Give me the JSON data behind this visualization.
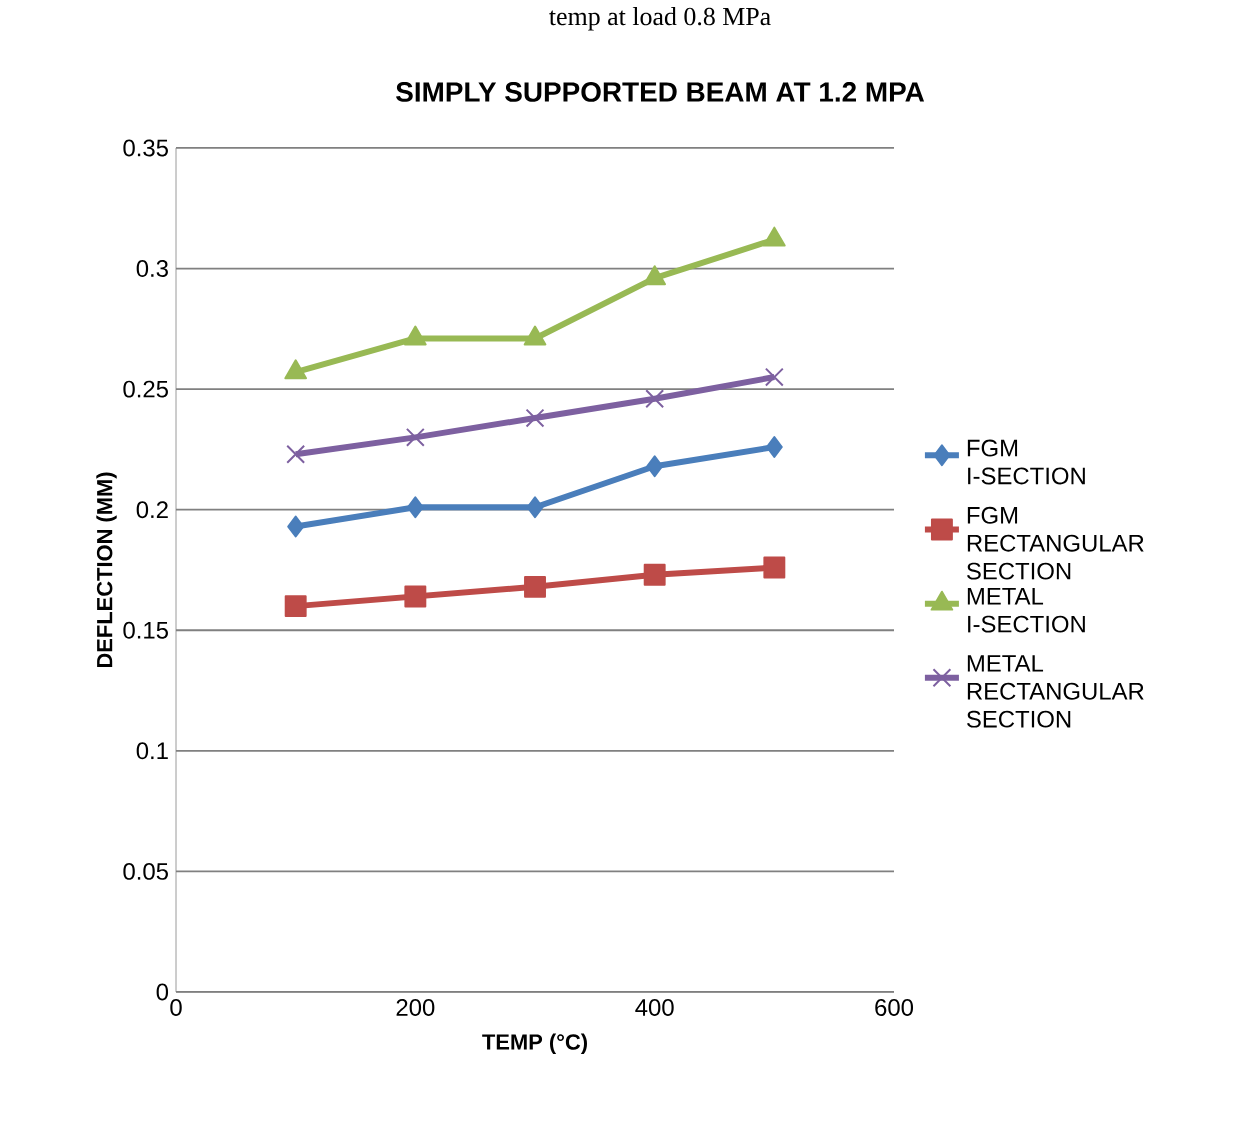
{
  "chart_data": {
    "type": "line",
    "title": "SIMPLY SUPPORTED BEAM AT 1.2 MPA",
    "xlabel": "TEMP (°C)",
    "ylabel": "DEFLECTION (MM)",
    "annotations": [
      "temp at load 0.8 MPa"
    ],
    "x": [
      100,
      200,
      300,
      400,
      500
    ],
    "xlim": [
      0,
      600
    ],
    "xticks": [
      0,
      200,
      400,
      600
    ],
    "ylim": [
      0,
      0.35
    ],
    "yticks": [
      0,
      0.05,
      0.1,
      0.15,
      0.2,
      0.25,
      0.3,
      0.35
    ],
    "grid": "y",
    "legend": "right",
    "series": [
      {
        "name": "FGM I-SECTION",
        "color": "#4a7ebb",
        "marker": "diamond",
        "values": [
          0.193,
          0.201,
          0.201,
          0.218,
          0.226
        ]
      },
      {
        "name": "FGM RECTANGULAR SECTION",
        "color": "#be4b48",
        "marker": "square",
        "values": [
          0.16,
          0.164,
          0.168,
          0.173,
          0.176
        ]
      },
      {
        "name": "METAL I-SECTION",
        "color": "#98b954",
        "marker": "triangle",
        "values": [
          0.257,
          0.271,
          0.271,
          0.296,
          0.312
        ]
      },
      {
        "name": "METAL RECTANGULAR SECTION",
        "color": "#7d60a0",
        "marker": "cross",
        "values": [
          0.223,
          0.23,
          0.238,
          0.246,
          0.255
        ]
      }
    ]
  }
}
